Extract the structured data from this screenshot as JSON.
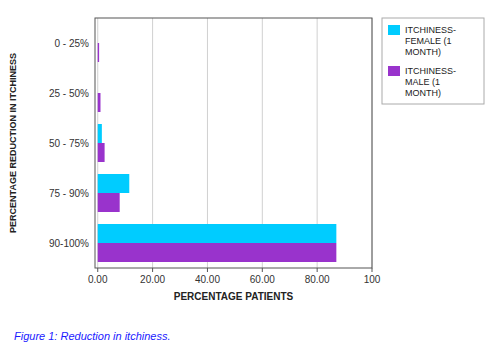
{
  "chart_data": {
    "type": "bar",
    "orientation": "horizontal",
    "caption": "Figure 1: Reduction in itchiness.",
    "x_label": "PERCENTAGE PATIENTS",
    "y_label": "PERCENTAGE REDUCTION IN ITCHINESS",
    "categories": [
      "0 - 25%",
      "25 - 50%",
      "50 - 75%",
      "75 - 90%",
      "90-100%"
    ],
    "series": [
      {
        "name": "ITCHINESS-\nFEMALE (1\nMONTH)",
        "color": "#00CCFF",
        "values": [
          0.0,
          0.0,
          1.5,
          11.5,
          87.0
        ]
      },
      {
        "name": "ITCHINESS-\nMALE (1\nMONTH)",
        "color": "#9933CC",
        "values": [
          0.5,
          1.0,
          2.5,
          8.0,
          87.0
        ]
      }
    ],
    "xlim": [
      -1,
      100
    ],
    "xticks": [
      {
        "value": 0,
        "label": "0.00"
      },
      {
        "value": 20,
        "label": "20.00"
      },
      {
        "value": 40,
        "label": "40.00"
      },
      {
        "value": 60,
        "label": "60.00"
      },
      {
        "value": 80,
        "label": "80.00"
      },
      100
    ],
    "grid": true,
    "legend": "right"
  }
}
